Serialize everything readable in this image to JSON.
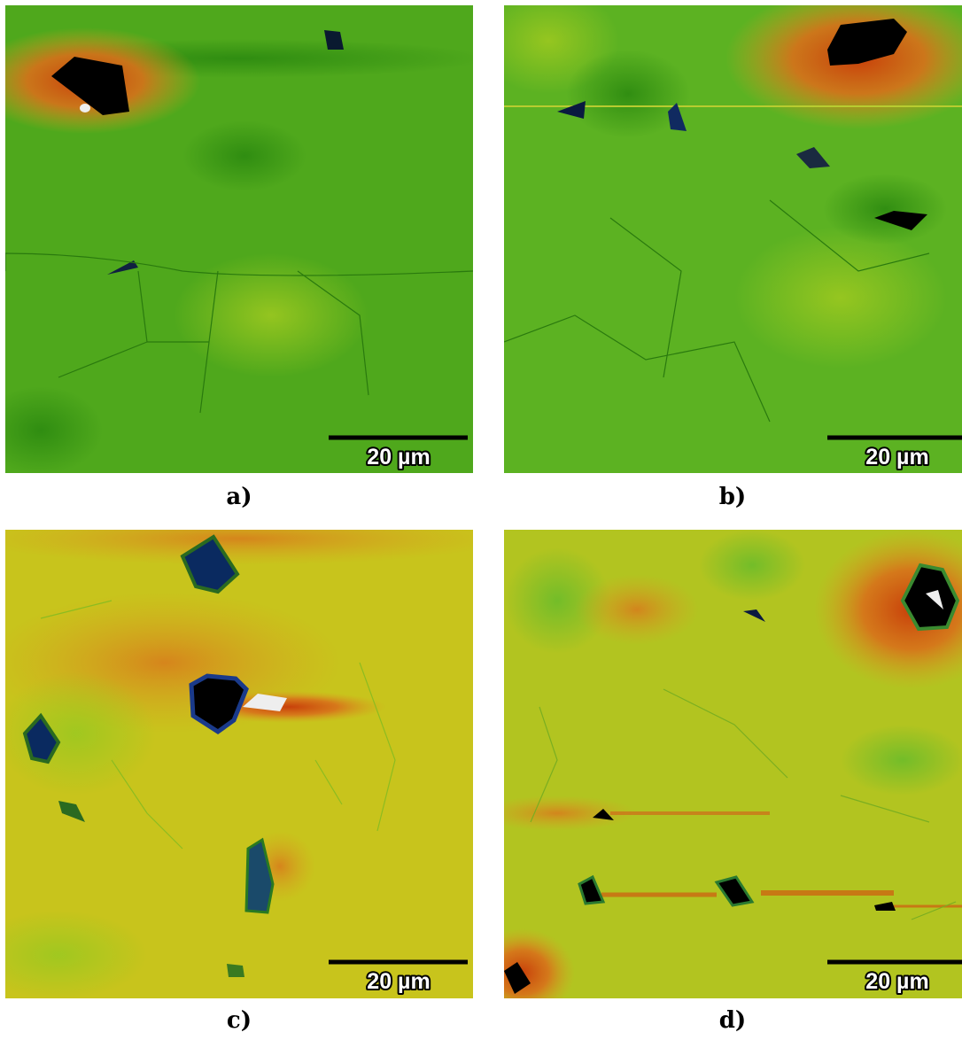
{
  "panels": [
    {
      "label": "a)",
      "scale_bar": "20 µm"
    },
    {
      "label": "b)",
      "scale_bar": "20 µm"
    },
    {
      "label": "c)",
      "scale_bar": "20 µm"
    },
    {
      "label": "d)",
      "scale_bar": "20 µm"
    }
  ]
}
